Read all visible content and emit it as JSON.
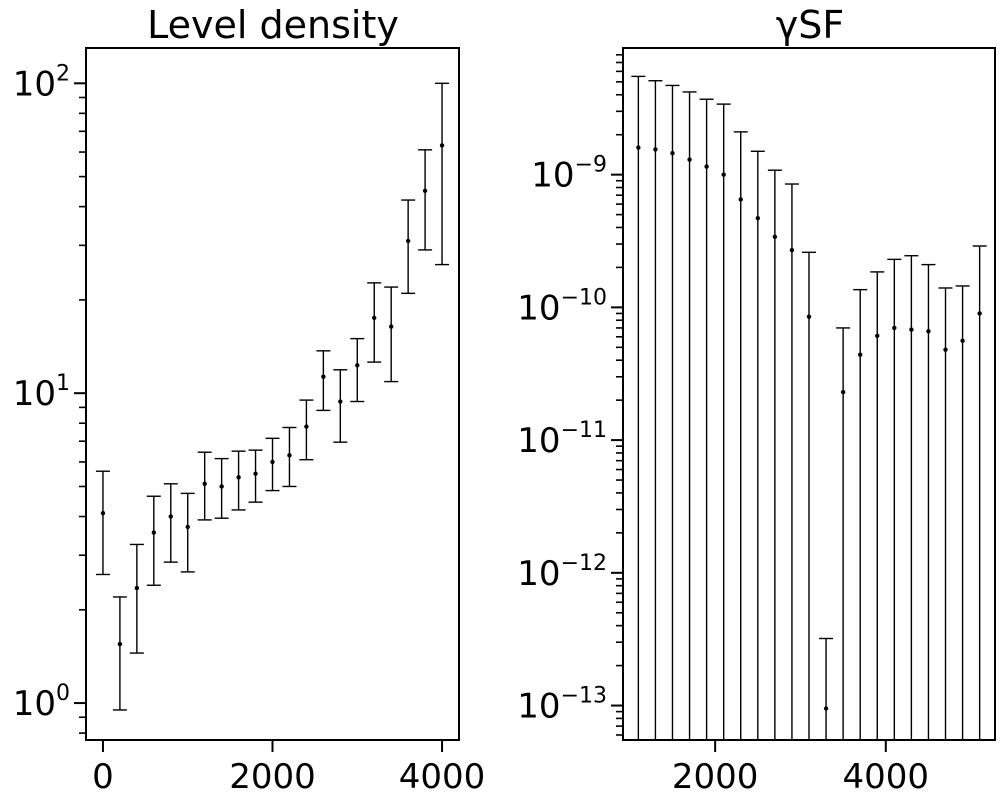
{
  "chart_data": [
    {
      "type": "scatter",
      "title": "Level density",
      "xlabel": "",
      "ylabel": "",
      "yscale": "log",
      "xlim": [
        -200,
        4200
      ],
      "ylim": [
        0.76,
        130
      ],
      "xticks": [
        {
          "value": 0,
          "label": "0"
        },
        {
          "value": 2000,
          "label": "2000"
        },
        {
          "value": 4000,
          "label": "4000"
        }
      ],
      "yticks": [
        {
          "value": 1,
          "base": "10",
          "exp": "0"
        },
        {
          "value": 10,
          "base": "10",
          "exp": "1"
        },
        {
          "value": 100,
          "base": "10",
          "exp": "2"
        }
      ],
      "grid": false,
      "legend": "none",
      "marker_color": "#000000",
      "errorbars": true,
      "points": [
        {
          "x": 0,
          "y": 4.1,
          "lo": 2.6,
          "hi": 5.6
        },
        {
          "x": 200,
          "y": 1.55,
          "lo": 0.95,
          "hi": 2.2
        },
        {
          "x": 400,
          "y": 2.35,
          "lo": 1.45,
          "hi": 3.25
        },
        {
          "x": 600,
          "y": 3.55,
          "lo": 2.4,
          "hi": 4.65
        },
        {
          "x": 800,
          "y": 4.0,
          "lo": 2.85,
          "hi": 5.1
        },
        {
          "x": 1000,
          "y": 3.7,
          "lo": 2.65,
          "hi": 4.75
        },
        {
          "x": 1200,
          "y": 5.1,
          "lo": 3.9,
          "hi": 6.45
        },
        {
          "x": 1400,
          "y": 5.0,
          "lo": 3.95,
          "hi": 6.15
        },
        {
          "x": 1600,
          "y": 5.35,
          "lo": 4.2,
          "hi": 6.5
        },
        {
          "x": 1800,
          "y": 5.5,
          "lo": 4.45,
          "hi": 6.55
        },
        {
          "x": 2000,
          "y": 6.0,
          "lo": 4.85,
          "hi": 7.15
        },
        {
          "x": 2200,
          "y": 6.3,
          "lo": 5.0,
          "hi": 7.75
        },
        {
          "x": 2400,
          "y": 7.8,
          "lo": 6.1,
          "hi": 9.5
        },
        {
          "x": 2600,
          "y": 11.3,
          "lo": 8.8,
          "hi": 13.7
        },
        {
          "x": 2800,
          "y": 9.4,
          "lo": 6.95,
          "hi": 11.9
        },
        {
          "x": 3000,
          "y": 12.3,
          "lo": 9.4,
          "hi": 15.0
        },
        {
          "x": 3200,
          "y": 17.5,
          "lo": 12.6,
          "hi": 22.7
        },
        {
          "x": 3400,
          "y": 16.4,
          "lo": 10.9,
          "hi": 22.0
        },
        {
          "x": 3600,
          "y": 31.0,
          "lo": 21.0,
          "hi": 42.0
        },
        {
          "x": 3800,
          "y": 45.0,
          "lo": 29.0,
          "hi": 61.0
        },
        {
          "x": 4000,
          "y": 63.0,
          "lo": 26.0,
          "hi": 100.0
        }
      ]
    },
    {
      "type": "scatter",
      "title": "γSF",
      "xlabel": "",
      "ylabel": "",
      "yscale": "log",
      "xlim": [
        920,
        5280
      ],
      "ylim": [
        5.5e-14,
        9e-09
      ],
      "xticks": [
        {
          "value": 2000,
          "label": "2000"
        },
        {
          "value": 4000,
          "label": "4000"
        }
      ],
      "yticks": [
        {
          "value": 1e-09,
          "base": "10",
          "exp": "−9"
        },
        {
          "value": 1e-10,
          "base": "10",
          "exp": "−10"
        },
        {
          "value": 1e-11,
          "base": "10",
          "exp": "−11"
        },
        {
          "value": 1e-12,
          "base": "10",
          "exp": "−12"
        },
        {
          "value": 1e-13,
          "base": "10",
          "exp": "−13"
        }
      ],
      "grid": false,
      "legend": "none",
      "marker_color": "#000000",
      "errorbars": true,
      "points": [
        {
          "x": 1100,
          "y": 1.6e-09,
          "lo": 1e-15,
          "hi": 5.5e-09
        },
        {
          "x": 1300,
          "y": 1.55e-09,
          "lo": 1e-15,
          "hi": 5.1e-09
        },
        {
          "x": 1500,
          "y": 1.45e-09,
          "lo": 1e-15,
          "hi": 4.7e-09
        },
        {
          "x": 1700,
          "y": 1.3e-09,
          "lo": 1e-15,
          "hi": 4.2e-09
        },
        {
          "x": 1900,
          "y": 1.15e-09,
          "lo": 1e-15,
          "hi": 3.7e-09
        },
        {
          "x": 2100,
          "y": 1e-09,
          "lo": 1e-15,
          "hi": 3.4e-09
        },
        {
          "x": 2300,
          "y": 6.5e-10,
          "lo": 1e-15,
          "hi": 2.1e-09
        },
        {
          "x": 2500,
          "y": 4.7e-10,
          "lo": 1e-15,
          "hi": 1.5e-09
        },
        {
          "x": 2700,
          "y": 3.4e-10,
          "lo": 1e-15,
          "hi": 1.08e-09
        },
        {
          "x": 2900,
          "y": 2.7e-10,
          "lo": 1e-15,
          "hi": 8.5e-10
        },
        {
          "x": 3100,
          "y": 8.5e-11,
          "lo": 1e-15,
          "hi": 2.6e-10
        },
        {
          "x": 3300,
          "y": 9.5e-14,
          "lo": 1e-15,
          "hi": 3.2e-13
        },
        {
          "x": 3500,
          "y": 2.3e-11,
          "lo": 1e-15,
          "hi": 7e-11
        },
        {
          "x": 3700,
          "y": 4.4e-11,
          "lo": 1e-15,
          "hi": 1.36e-10
        },
        {
          "x": 3900,
          "y": 6.1e-11,
          "lo": 1e-15,
          "hi": 1.85e-10
        },
        {
          "x": 4100,
          "y": 7e-11,
          "lo": 1e-15,
          "hi": 2.3e-10
        },
        {
          "x": 4300,
          "y": 6.8e-11,
          "lo": 1e-15,
          "hi": 2.45e-10
        },
        {
          "x": 4500,
          "y": 6.6e-11,
          "lo": 1e-15,
          "hi": 2.1e-10
        },
        {
          "x": 4700,
          "y": 4.8e-11,
          "lo": 1e-15,
          "hi": 1.4e-10
        },
        {
          "x": 4900,
          "y": 5.6e-11,
          "lo": 1e-15,
          "hi": 1.45e-10
        },
        {
          "x": 5100,
          "y": 9e-11,
          "lo": 1e-15,
          "hi": 2.9e-10
        }
      ]
    }
  ]
}
